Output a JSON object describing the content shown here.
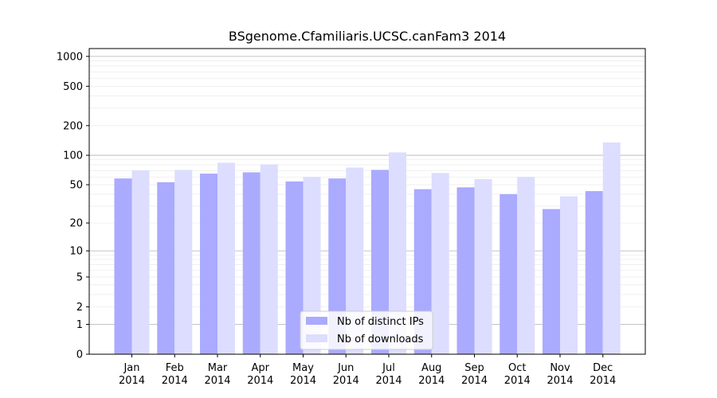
{
  "chart_data": {
    "type": "bar",
    "title": "BSgenome.Cfamiliaris.UCSC.canFam3 2014",
    "xlabel": "",
    "ylabel": "",
    "yscale": "log1p",
    "ylim": [
      0,
      1200
    ],
    "yticks": [
      0,
      1,
      2,
      5,
      10,
      20,
      50,
      100,
      200,
      500,
      1000
    ],
    "categories": [
      "Jan\n2014",
      "Feb\n2014",
      "Mar\n2014",
      "Apr\n2014",
      "May\n2014",
      "Jun\n2014",
      "Jul\n2014",
      "Aug\n2014",
      "Sep\n2014",
      "Oct\n2014",
      "Nov\n2014",
      "Dec\n2014"
    ],
    "series": [
      {
        "name": "Nb of distinct IPs",
        "color": "#aaaaff",
        "values": [
          58,
          53,
          65,
          67,
          54,
          58,
          71,
          45,
          47,
          40,
          28,
          43
        ]
      },
      {
        "name": "Nb of downloads",
        "color": "#ddddff",
        "values": [
          70,
          71,
          84,
          81,
          60,
          75,
          107,
          66,
          57,
          60,
          38,
          135
        ]
      }
    ],
    "legend": "lower-center",
    "grid": true
  }
}
